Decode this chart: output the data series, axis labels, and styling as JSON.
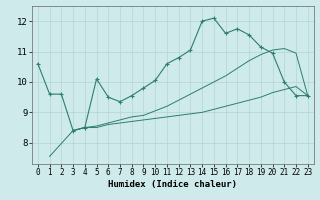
{
  "xlabel": "Humidex (Indice chaleur)",
  "bg_color": "#ceeaea",
  "grid_color": "#b8d8d8",
  "line_color": "#2e7d6e",
  "xlim": [
    -0.5,
    23.5
  ],
  "ylim": [
    7.3,
    12.5
  ],
  "xticks": [
    0,
    1,
    2,
    3,
    4,
    5,
    6,
    7,
    8,
    9,
    10,
    11,
    12,
    13,
    14,
    15,
    16,
    17,
    18,
    19,
    20,
    21,
    22,
    23
  ],
  "yticks": [
    8,
    9,
    10,
    11,
    12
  ],
  "line1_x": [
    0,
    1,
    2,
    3,
    4,
    5,
    6,
    7,
    8,
    9,
    10,
    11,
    12,
    13,
    14,
    15,
    16,
    17,
    18,
    19,
    20,
    21,
    22,
    23
  ],
  "line1_y": [
    10.6,
    9.6,
    9.6,
    8.4,
    8.5,
    10.1,
    9.5,
    9.35,
    9.55,
    9.8,
    10.05,
    10.6,
    10.8,
    11.05,
    12.0,
    12.1,
    11.6,
    11.75,
    11.55,
    11.15,
    10.95,
    10.0,
    9.55,
    9.55
  ],
  "line2_x": [
    1,
    3,
    4,
    5,
    6,
    7,
    8,
    9,
    10,
    11,
    12,
    13,
    14,
    15,
    16,
    17,
    18,
    19,
    20,
    21,
    22,
    23
  ],
  "line2_y": [
    7.55,
    8.4,
    8.5,
    8.5,
    8.6,
    8.65,
    8.7,
    8.75,
    8.8,
    8.85,
    8.9,
    8.95,
    9.0,
    9.1,
    9.2,
    9.3,
    9.4,
    9.5,
    9.65,
    9.75,
    9.85,
    9.55
  ],
  "line3_x": [
    3,
    4,
    5,
    6,
    7,
    8,
    9,
    10,
    11,
    12,
    13,
    14,
    15,
    16,
    17,
    18,
    19,
    20,
    21,
    22,
    23
  ],
  "line3_y": [
    8.4,
    8.5,
    8.55,
    8.65,
    8.75,
    8.85,
    8.9,
    9.05,
    9.2,
    9.4,
    9.6,
    9.8,
    10.0,
    10.2,
    10.45,
    10.7,
    10.9,
    11.05,
    11.1,
    10.95,
    9.55
  ]
}
